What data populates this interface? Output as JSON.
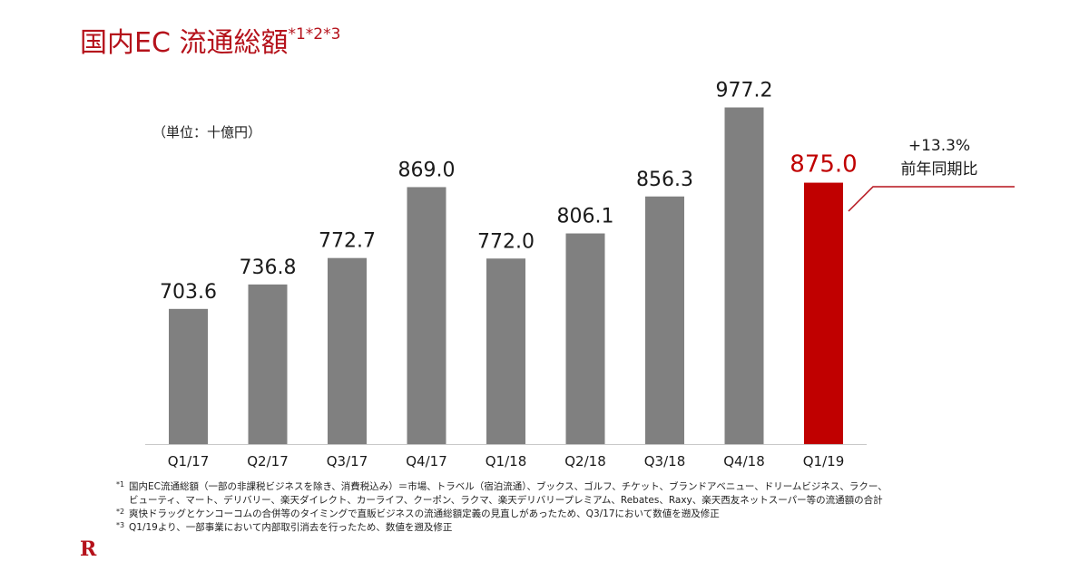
{
  "title": {
    "main": "国内EC 流通総額",
    "sup": "*1*2*3"
  },
  "unit_label": "（単位：十億円）",
  "chart_data": {
    "type": "bar",
    "categories": [
      "Q1/17",
      "Q2/17",
      "Q3/17",
      "Q4/17",
      "Q1/18",
      "Q2/18",
      "Q3/18",
      "Q4/18",
      "Q1/19"
    ],
    "values": [
      703.6,
      736.8,
      772.7,
      869.0,
      772.0,
      806.1,
      856.3,
      977.2,
      875.0
    ],
    "value_labels": [
      "703.6",
      "736.8",
      "772.7",
      "869.0",
      "772.0",
      "806.1",
      "856.3",
      "977.2",
      "875.0"
    ],
    "highlight_index": 8,
    "bar_color": "#808080",
    "highlight_color": "#c00000",
    "ylim": [
      520,
      1000
    ],
    "annotation": {
      "line1": "+13.3%",
      "line2": "前年同期比"
    }
  },
  "footnotes": [
    {
      "mark": "*1",
      "text": "国内EC流通総額（一部の非課税ビジネスを除き、消費税込み）＝市場、トラベル（宿泊流通）、ブックス、ゴルフ、チケット、ブランドアベニュー、ドリームビジネス、ラクー、"
    },
    {
      "mark": "",
      "text": "ビューティ、マート、デリバリー、楽天ダイレクト、カーライフ、クーポン、ラクマ、楽天デリバリープレミアム、Rebates、Raxy、楽天西友ネットスーパー等の流通額の合計"
    },
    {
      "mark": "*2",
      "text": "爽快ドラッグとケンコーコムの合併等のタイミングで直販ビジネスの流通総額定義の見直しがあったため、Q3/17において数値を遡及修正"
    },
    {
      "mark": "*3",
      "text": "Q1/19より、一部事業において内部取引消去を行ったため、数値を遡及修正"
    }
  ],
  "logo": "R"
}
